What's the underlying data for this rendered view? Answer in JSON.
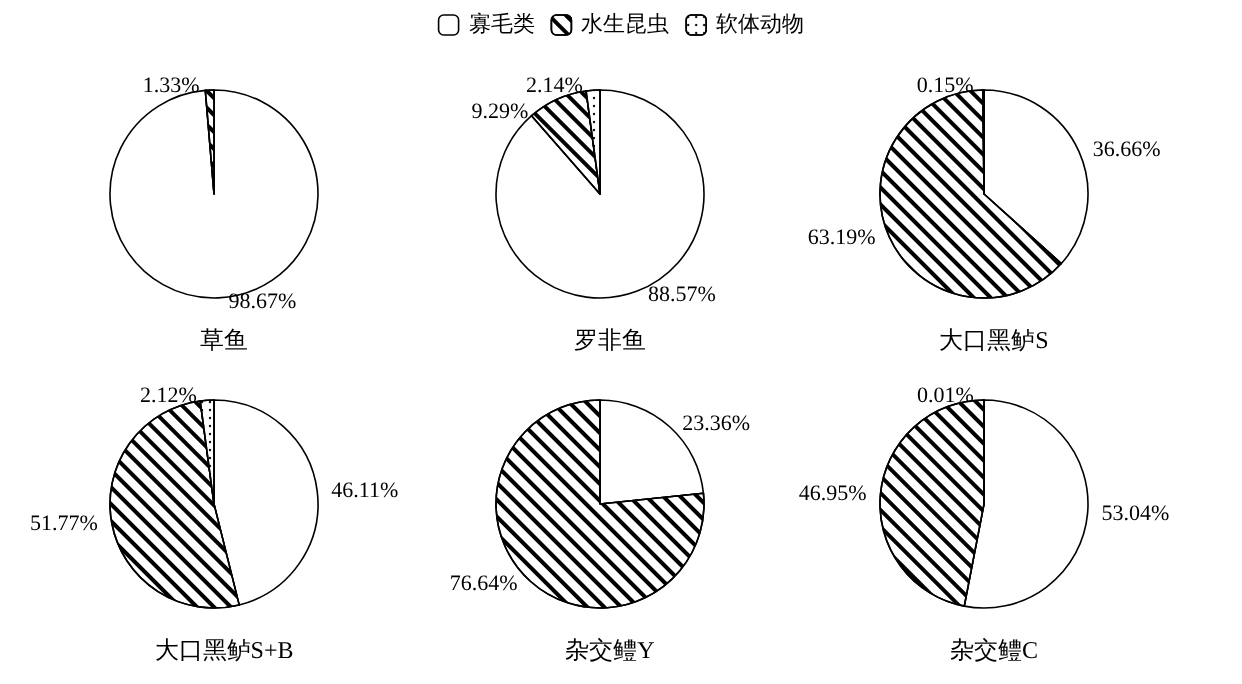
{
  "chart_data": [
    {
      "type": "pie",
      "title": "草鱼",
      "categories": [
        "寡毛类",
        "水生昆虫",
        "软体动物"
      ],
      "values": [
        98.67,
        1.33,
        null
      ],
      "value_labels": [
        "98.67%",
        "1.33%",
        null
      ],
      "colors": [
        "#ffffff",
        "#ffffff",
        "#ffffff"
      ],
      "legend": "top"
    },
    {
      "type": "pie",
      "title": "罗非鱼",
      "categories": [
        null,
        null,
        null
      ],
      "values": [
        88.57,
        9.29,
        2.14
      ],
      "value_labels": [
        "88.57%",
        "9.29%",
        "2.14%"
      ],
      "colors": [
        "#ffffff",
        "#ffffff",
        "#ffffff"
      ]
    },
    {
      "type": "pie",
      "title": "大口黑鲈S",
      "categories": [
        null,
        null,
        null
      ],
      "values": [
        36.66,
        63.19,
        0.15
      ],
      "value_labels": [
        "36.66%",
        "63.19%",
        "0.15%"
      ],
      "colors": [
        "#ffffff",
        "#ffffff",
        "#ffffff"
      ]
    },
    {
      "type": "pie",
      "title": "大口黑鲈S+B",
      "categories": [
        null,
        null,
        null
      ],
      "values": [
        46.11,
        51.77,
        2.12
      ],
      "value_labels": [
        "46.11%",
        "51.77%",
        "2.12%"
      ],
      "colors": [
        "#ffffff",
        "#ffffff",
        "#ffffff"
      ]
    },
    {
      "type": "pie",
      "title": "杂交鳢Y",
      "categories": [
        null,
        null,
        null
      ],
      "values": [
        23.36,
        76.64,
        null
      ],
      "value_labels": [
        "23.36%",
        "76.64%",
        null
      ],
      "colors": [
        "#ffffff",
        "#ffffff",
        "#ffffff"
      ]
    },
    {
      "type": "pie",
      "title": "杂交鳢C",
      "categories": [
        null,
        null,
        null
      ],
      "values": [
        53.04,
        46.95,
        0.01
      ],
      "value_labels": [
        "53.04%",
        "46.95%",
        "0.01%"
      ],
      "colors": [
        "#ffffff",
        "#ffffff",
        "#ffffff"
      ]
    }
  ]
}
